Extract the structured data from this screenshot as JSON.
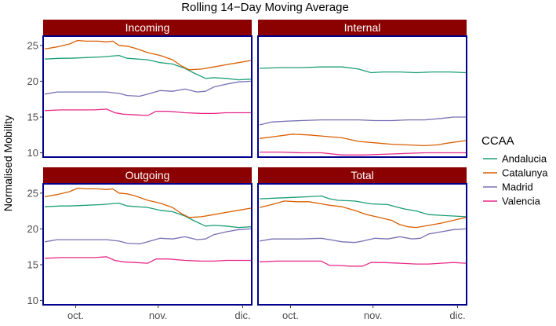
{
  "chart_data": {
    "type": "line",
    "title": "Rolling 14−Day Moving Average",
    "ylabel": "Normalised Mobility",
    "xlabel": "",
    "ylim": [
      9.4,
      26.3
    ],
    "x_range": [
      0,
      100
    ],
    "x_ticks": [
      {
        "label": "oct.",
        "pos": 15
      },
      {
        "label": "nov.",
        "pos": 55
      },
      {
        "label": "dic.",
        "pos": 96
      }
    ],
    "y_ticks": [
      10,
      15,
      20,
      25
    ],
    "legend": {
      "title": "CCAA",
      "position": "right",
      "entries": [
        {
          "name": "Andalucia",
          "color": "#1b9e77"
        },
        {
          "name": "Catalunya",
          "color": "#d95f02"
        },
        {
          "name": "Madrid",
          "color": "#7570b3"
        },
        {
          "name": "Valencia",
          "color": "#e7298a"
        }
      ]
    },
    "panels": [
      {
        "name": "Incoming",
        "series": [
          {
            "name": "Andalucia",
            "x": [
              0,
              8,
              12,
              20,
              28,
              36,
              40,
              50,
              56,
              62,
              68,
              72,
              78,
              82,
              88,
              94,
              100
            ],
            "y": [
              23.1,
              23.2,
              23.2,
              23.3,
              23.4,
              23.6,
              23.2,
              23.0,
              22.6,
              22.4,
              21.8,
              21.2,
              20.4,
              20.5,
              20.4,
              20.2,
              20.3
            ]
          },
          {
            "name": "Catalunya",
            "x": [
              0,
              6,
              12,
              16,
              20,
              26,
              30,
              33,
              36,
              40,
              44,
              50,
              56,
              62,
              66,
              70,
              76,
              82,
              88,
              94,
              100
            ],
            "y": [
              24.5,
              24.8,
              25.2,
              25.7,
              25.6,
              25.6,
              25.5,
              25.6,
              25.0,
              24.9,
              24.6,
              24.0,
              23.6,
              23.0,
              22.2,
              21.6,
              21.7,
              22.0,
              22.3,
              22.6,
              22.9
            ]
          },
          {
            "name": "Madrid",
            "x": [
              0,
              6,
              12,
              20,
              30,
              36,
              40,
              46,
              50,
              56,
              62,
              68,
              74,
              78,
              82,
              88,
              94,
              100
            ],
            "y": [
              18.2,
              18.5,
              18.5,
              18.5,
              18.5,
              18.3,
              18.0,
              17.9,
              18.2,
              18.7,
              18.6,
              18.9,
              18.5,
              18.6,
              19.2,
              19.6,
              19.9,
              20.0
            ]
          },
          {
            "name": "Valencia",
            "x": [
              0,
              8,
              16,
              24,
              30,
              34,
              38,
              44,
              50,
              54,
              60,
              68,
              76,
              82,
              88,
              94,
              100
            ],
            "y": [
              15.9,
              16.0,
              16.0,
              16.0,
              16.1,
              15.6,
              15.4,
              15.3,
              15.2,
              15.8,
              15.8,
              15.6,
              15.5,
              15.5,
              15.6,
              15.6,
              15.6
            ]
          }
        ]
      },
      {
        "name": "Internal",
        "series": [
          {
            "name": "Andalucia",
            "x": [
              0,
              10,
              20,
              30,
              40,
              48,
              54,
              60,
              68,
              76,
              84,
              92,
              100
            ],
            "y": [
              21.8,
              21.9,
              21.9,
              22.0,
              22.0,
              21.7,
              21.2,
              21.3,
              21.3,
              21.2,
              21.3,
              21.3,
              21.2
            ]
          },
          {
            "name": "Catalunya",
            "x": [
              0,
              8,
              16,
              24,
              32,
              40,
              48,
              56,
              64,
              72,
              80,
              86,
              92,
              100
            ],
            "y": [
              12.0,
              12.3,
              12.6,
              12.5,
              12.3,
              12.1,
              11.6,
              11.4,
              11.2,
              11.1,
              11.0,
              11.1,
              11.4,
              11.7
            ]
          },
          {
            "name": "Madrid",
            "x": [
              0,
              6,
              12,
              20,
              30,
              40,
              48,
              56,
              64,
              72,
              80,
              88,
              94,
              100
            ],
            "y": [
              13.9,
              14.3,
              14.4,
              14.5,
              14.6,
              14.6,
              14.6,
              14.5,
              14.5,
              14.6,
              14.6,
              14.8,
              15.0,
              15.0
            ]
          },
          {
            "name": "Valencia",
            "x": [
              0,
              10,
              20,
              30,
              40,
              50,
              60,
              70,
              80,
              90,
              100
            ],
            "y": [
              10.1,
              10.1,
              10.0,
              10.0,
              9.7,
              9.7,
              9.8,
              9.9,
              10.0,
              10.0,
              10.0
            ]
          }
        ]
      },
      {
        "name": "Outgoing",
        "series": [
          {
            "name": "Andalucia",
            "x": [
              0,
              8,
              12,
              20,
              28,
              36,
              40,
              50,
              56,
              62,
              68,
              72,
              78,
              82,
              88,
              94,
              100
            ],
            "y": [
              23.1,
              23.2,
              23.2,
              23.3,
              23.4,
              23.6,
              23.2,
              23.0,
              22.6,
              22.4,
              21.8,
              21.2,
              20.4,
              20.5,
              20.4,
              20.2,
              20.3
            ]
          },
          {
            "name": "Catalunya",
            "x": [
              0,
              6,
              12,
              16,
              20,
              26,
              30,
              33,
              36,
              40,
              44,
              50,
              56,
              62,
              66,
              70,
              76,
              82,
              88,
              94,
              100
            ],
            "y": [
              24.5,
              24.8,
              25.2,
              25.7,
              25.6,
              25.6,
              25.5,
              25.6,
              25.0,
              24.9,
              24.6,
              24.0,
              23.6,
              23.0,
              22.2,
              21.6,
              21.7,
              22.0,
              22.3,
              22.6,
              22.9
            ]
          },
          {
            "name": "Madrid",
            "x": [
              0,
              6,
              12,
              20,
              30,
              36,
              40,
              46,
              50,
              56,
              62,
              68,
              74,
              78,
              82,
              88,
              94,
              100
            ],
            "y": [
              18.2,
              18.5,
              18.5,
              18.5,
              18.5,
              18.3,
              18.0,
              17.9,
              18.2,
              18.7,
              18.6,
              18.9,
              18.5,
              18.6,
              19.2,
              19.6,
              19.9,
              20.0
            ]
          },
          {
            "name": "Valencia",
            "x": [
              0,
              8,
              16,
              24,
              30,
              34,
              38,
              44,
              50,
              54,
              60,
              68,
              76,
              82,
              88,
              94,
              100
            ],
            "y": [
              15.9,
              16.0,
              16.0,
              16.0,
              16.1,
              15.6,
              15.4,
              15.3,
              15.2,
              15.8,
              15.8,
              15.6,
              15.5,
              15.5,
              15.6,
              15.6,
              15.6
            ]
          }
        ]
      },
      {
        "name": "Total",
        "series": [
          {
            "name": "Andalucia",
            "x": [
              0,
              8,
              16,
              24,
              30,
              34,
              38,
              46,
              54,
              62,
              70,
              76,
              82,
              88,
              94,
              100
            ],
            "y": [
              24.2,
              24.3,
              24.4,
              24.5,
              24.6,
              24.2,
              24.0,
              23.9,
              23.5,
              23.4,
              22.8,
              22.5,
              22.0,
              21.9,
              21.8,
              21.7
            ]
          },
          {
            "name": "Catalunya",
            "x": [
              0,
              6,
              12,
              18,
              24,
              30,
              34,
              40,
              46,
              52,
              58,
              64,
              68,
              72,
              76,
              82,
              88,
              94,
              100
            ],
            "y": [
              23.0,
              23.4,
              23.9,
              23.8,
              23.8,
              23.5,
              23.3,
              23.1,
              22.6,
              22.0,
              21.6,
              21.2,
              20.6,
              20.3,
              20.2,
              20.5,
              20.8,
              21.2,
              21.6
            ]
          },
          {
            "name": "Madrid",
            "x": [
              0,
              6,
              12,
              20,
              30,
              36,
              40,
              46,
              50,
              56,
              62,
              68,
              74,
              78,
              82,
              88,
              94,
              100
            ],
            "y": [
              18.3,
              18.6,
              18.6,
              18.6,
              18.7,
              18.4,
              18.2,
              18.1,
              18.3,
              18.7,
              18.6,
              18.9,
              18.6,
              18.7,
              19.3,
              19.6,
              19.9,
              20.0
            ]
          },
          {
            "name": "Valencia",
            "x": [
              0,
              8,
              16,
              24,
              30,
              34,
              38,
              44,
              50,
              54,
              60,
              68,
              76,
              82,
              88,
              94,
              100
            ],
            "y": [
              15.4,
              15.5,
              15.5,
              15.5,
              15.5,
              14.9,
              14.9,
              14.8,
              14.8,
              15.3,
              15.3,
              15.2,
              15.1,
              15.1,
              15.2,
              15.3,
              15.2
            ]
          }
        ]
      }
    ]
  }
}
